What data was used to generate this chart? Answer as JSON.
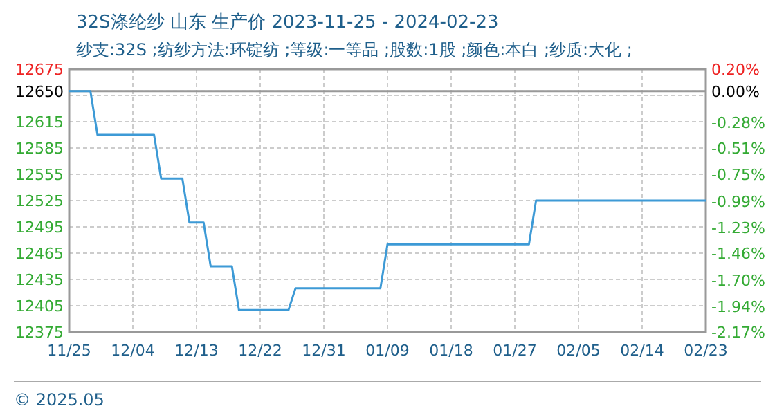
{
  "chart_data": {
    "type": "line",
    "title": "32S涤纶纱 山东 生产价 2023-11-25 - 2024-02-23",
    "subtitle": "纱支:32S ;纺纱方法:环锭纺 ;等级:一等品 ;股数:1股 ;颜色:本白 ;纱质:大化 ;",
    "x": [
      "2023-11-25",
      "2023-11-28",
      "2023-11-29",
      "2023-12-07",
      "2023-12-08",
      "2023-12-11",
      "2023-12-12",
      "2023-12-14",
      "2023-12-15",
      "2023-12-18",
      "2023-12-19",
      "2023-12-26",
      "2023-12-27",
      "2024-01-08",
      "2024-01-09",
      "2024-01-29",
      "2024-01-30",
      "2024-02-23"
    ],
    "series": [
      {
        "color": "#3d9ad6",
        "values": [
          12650,
          12650,
          12600,
          12600,
          12550,
          12550,
          12500,
          12500,
          12450,
          12450,
          12400,
          12400,
          12425,
          12425,
          12475,
          12475,
          12525,
          12525
        ]
      }
    ],
    "xlim": [
      "2023-11-25",
      "2024-02-23"
    ],
    "xticks": [
      {
        "value": "2023-11-25",
        "label": "11/25"
      },
      {
        "value": "2023-12-04",
        "label": "12/04"
      },
      {
        "value": "2023-12-13",
        "label": "12/13"
      },
      {
        "value": "2023-12-22",
        "label": "12/22"
      },
      {
        "value": "2023-12-31",
        "label": "12/31"
      },
      {
        "value": "2024-01-09",
        "label": "01/09"
      },
      {
        "value": "2024-01-18",
        "label": "01/18"
      },
      {
        "value": "2024-01-27",
        "label": "01/27"
      },
      {
        "value": "2024-02-05",
        "label": "02/05"
      },
      {
        "value": "2024-02-14",
        "label": "02/14"
      },
      {
        "value": "2024-02-23",
        "label": "02/23"
      }
    ],
    "ylim": [
      12375,
      12675
    ],
    "yticks": [
      12375,
      12405,
      12435,
      12465,
      12495,
      12525,
      12555,
      12585,
      12615,
      {
        "value": 12645,
        "label": null
      },
      12650,
      12675
    ],
    "y2lim": [
      -2.17,
      0.2
    ],
    "y2ticks": [
      {
        "value": -2.17,
        "label": "-2.17%"
      },
      {
        "value": -1.94,
        "label": "-1.94%"
      },
      {
        "value": -1.7,
        "label": "-1.70%"
      },
      {
        "value": -1.46,
        "label": "-1.46%"
      },
      {
        "value": -1.23,
        "label": "-1.23%"
      },
      {
        "value": -0.99,
        "label": "-0.99%"
      },
      {
        "value": -0.75,
        "label": "-0.75%"
      },
      {
        "value": -0.51,
        "label": "-0.51%"
      },
      {
        "value": -0.28,
        "label": "-0.28%"
      },
      {
        "value": 0,
        "label": "0.00%"
      },
      {
        "value": 0.2,
        "label": "0.20%"
      }
    ],
    "ref_lines": [
      {
        "axis": "y",
        "value": 12650,
        "color": "#999999"
      }
    ],
    "grid": true,
    "line_style": "solid",
    "marker": "none",
    "annotations": [
      "© 2025.05"
    ]
  }
}
